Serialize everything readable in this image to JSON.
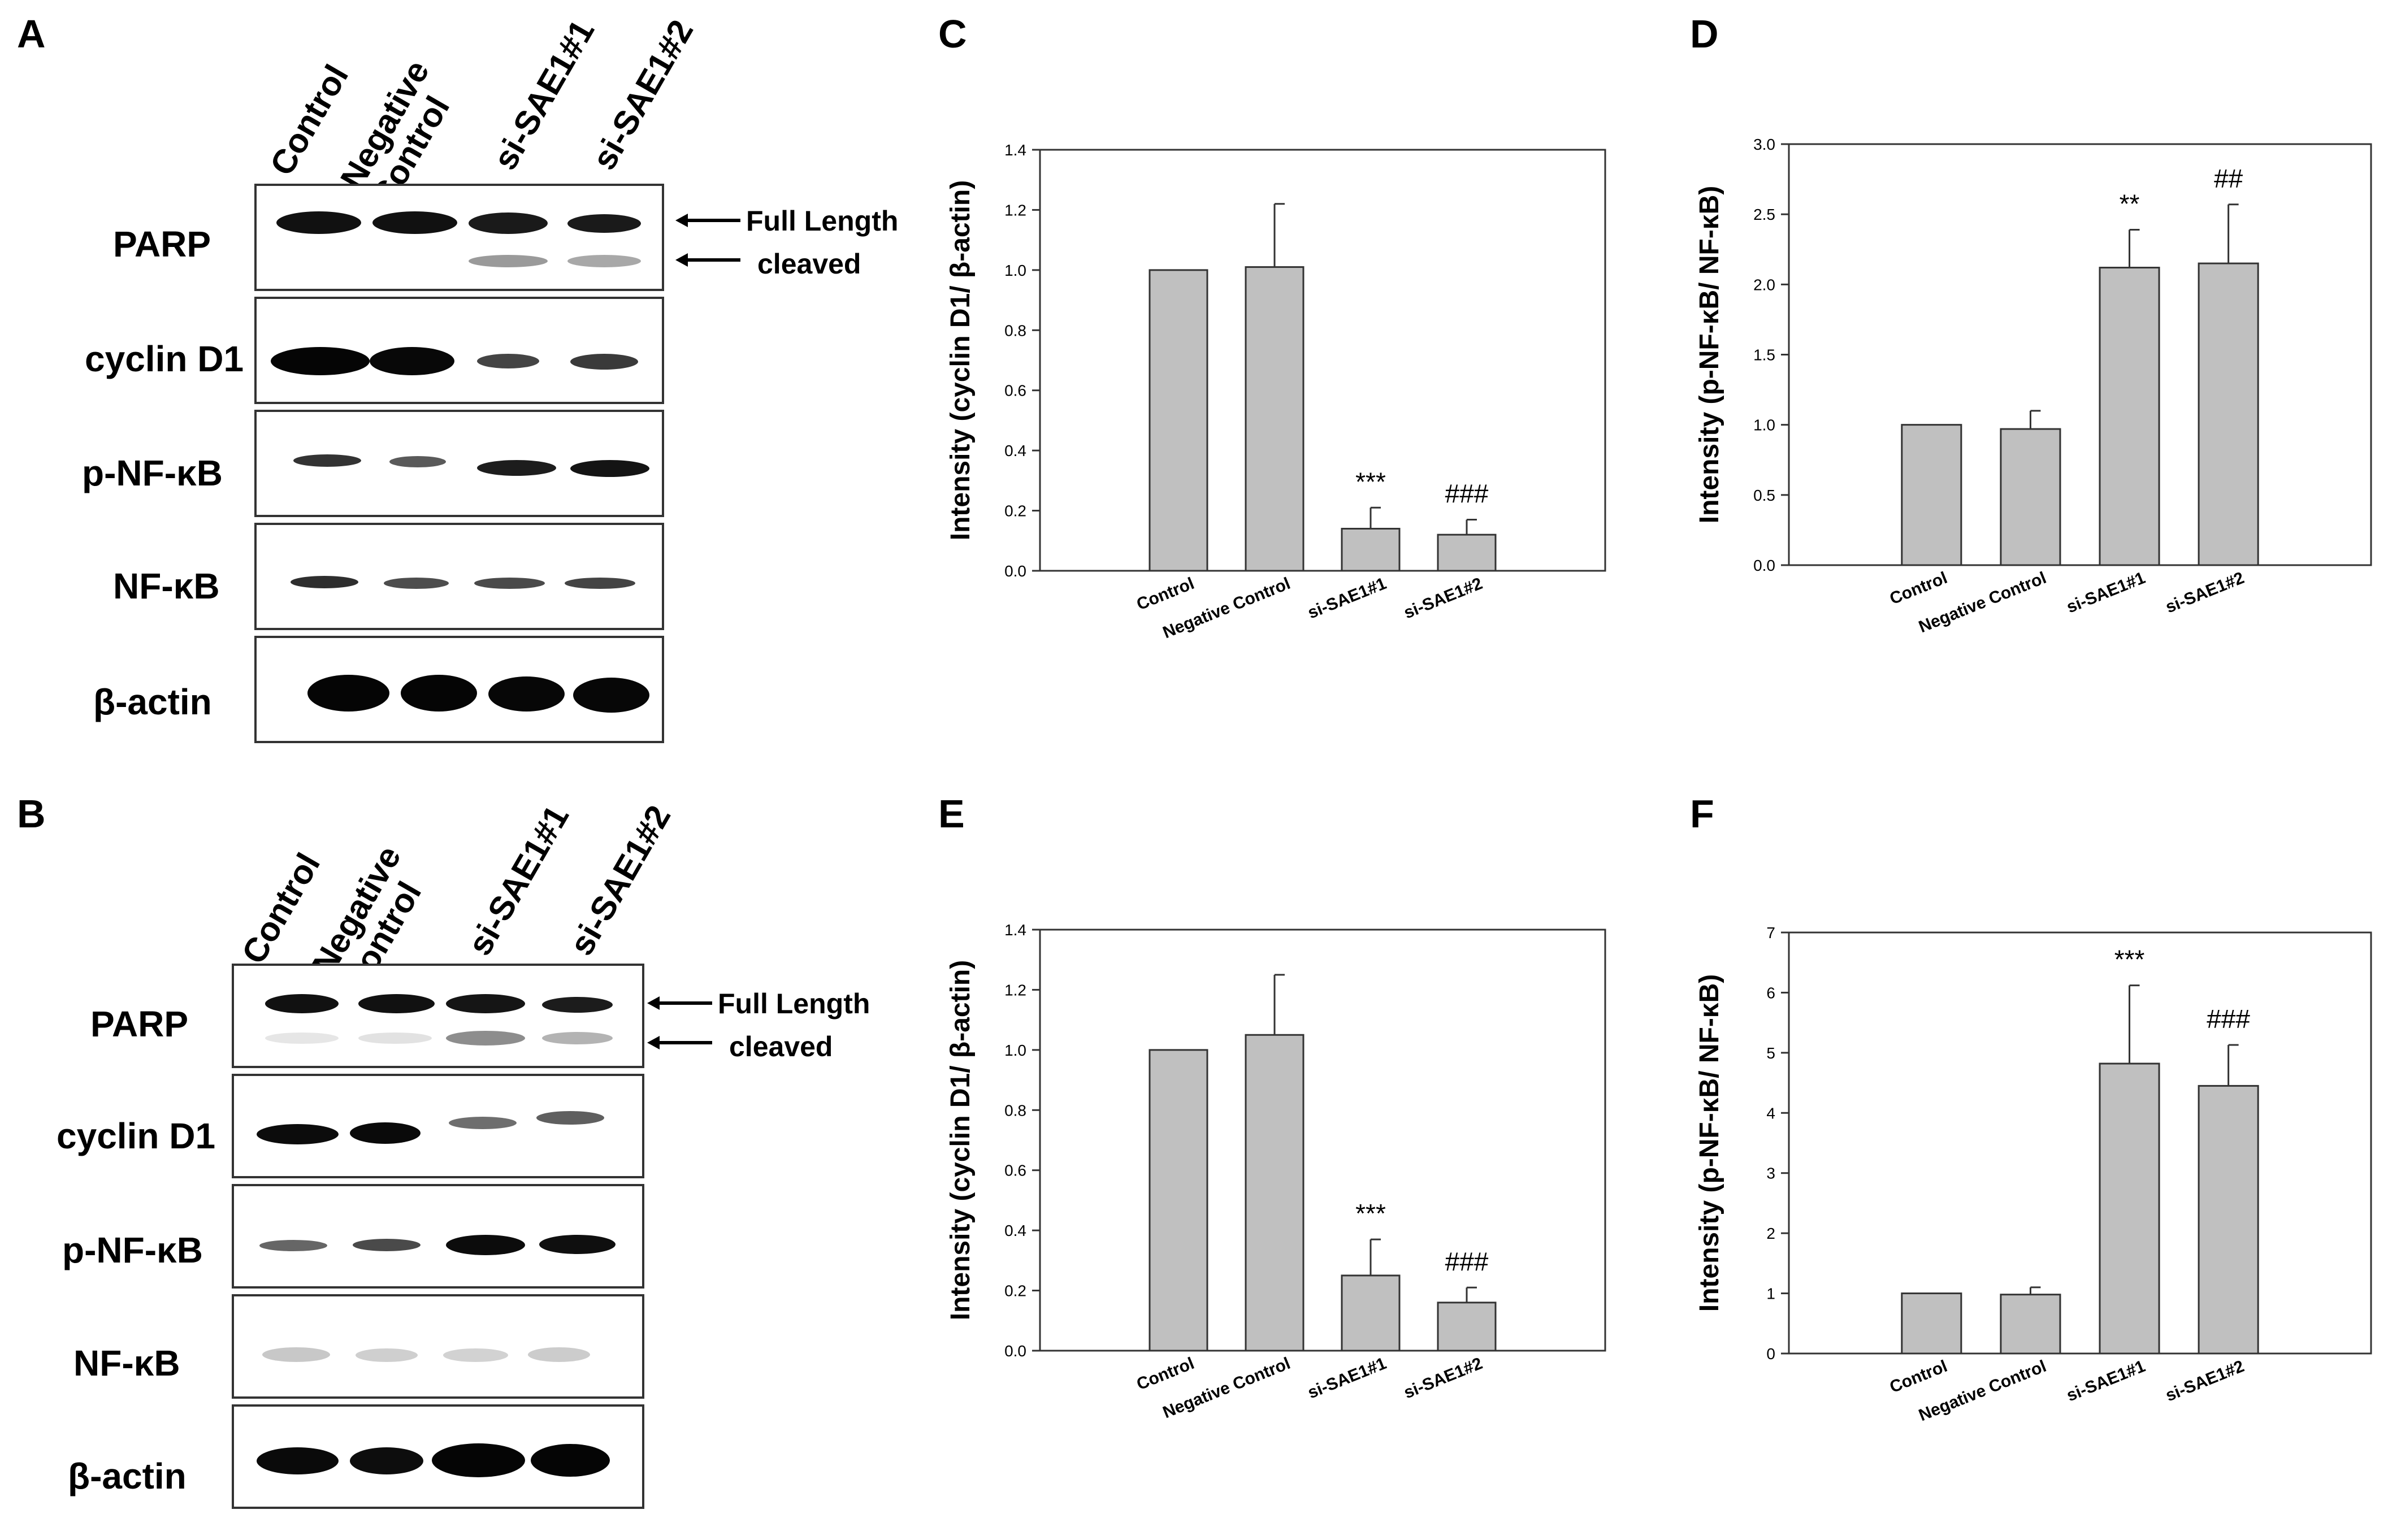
{
  "panels": {
    "A": "A",
    "B": "B",
    "C": "C",
    "D": "D",
    "E": "E",
    "F": "F"
  },
  "blots": [
    {
      "id": "A",
      "lanes": [
        "Control",
        "Negative Control",
        "si-SAE1#1",
        "si-SAE1#2"
      ],
      "rows": [
        {
          "label": "PARP"
        },
        {
          "label": "cyclin D1"
        },
        {
          "label": "p-NF-κB"
        },
        {
          "label": "NF-κB"
        },
        {
          "label": "β-actin"
        }
      ],
      "arrows": {
        "full": "Full Length",
        "cleaved": "cleaved"
      }
    },
    {
      "id": "B",
      "lanes": [
        "Control",
        "Negative Control",
        "si-SAE1#1",
        "si-SAE1#2"
      ],
      "rows": [
        {
          "label": "PARP"
        },
        {
          "label": "cyclin D1"
        },
        {
          "label": "p-NF-κB"
        },
        {
          "label": "NF-κB"
        },
        {
          "label": "β-actin"
        }
      ],
      "arrows": {
        "full": "Full Length",
        "cleaved": "cleaved"
      }
    }
  ],
  "chart_data": [
    {
      "panel": "C",
      "type": "bar",
      "categories": [
        "Control",
        "Negative Control",
        "si-SAE1#1",
        "si-SAE1#2"
      ],
      "values": [
        1.0,
        1.01,
        0.14,
        0.12
      ],
      "errors": [
        0.0,
        0.21,
        0.07,
        0.05
      ],
      "annotations": [
        "",
        "",
        "***",
        "###"
      ],
      "ylabel": "Intensity (cyclin D1/ β-actin)",
      "ylim": [
        0,
        1.4
      ],
      "yticks": [
        0.0,
        0.2,
        0.4,
        0.6,
        0.8,
        1.0,
        1.2,
        1.4
      ],
      "decimals": 1
    },
    {
      "panel": "D",
      "type": "bar",
      "categories": [
        "Control",
        "Negative Control",
        "si-SAE1#1",
        "si-SAE1#2"
      ],
      "values": [
        1.0,
        0.97,
        2.12,
        2.15
      ],
      "errors": [
        0.0,
        0.13,
        0.27,
        0.42
      ],
      "annotations": [
        "",
        "",
        "**",
        "##"
      ],
      "ylabel": "Intensity (p-NF-κB/ NF-κB)",
      "ylim": [
        0,
        3.0
      ],
      "yticks": [
        0.0,
        0.5,
        1.0,
        1.5,
        2.0,
        2.5,
        3.0
      ],
      "decimals": 1
    },
    {
      "panel": "E",
      "type": "bar",
      "categories": [
        "Control",
        "Negative Control",
        "si-SAE1#1",
        "si-SAE1#2"
      ],
      "values": [
        1.0,
        1.05,
        0.25,
        0.16
      ],
      "errors": [
        0.0,
        0.2,
        0.12,
        0.05
      ],
      "annotations": [
        "",
        "",
        "***",
        "###"
      ],
      "ylabel": "Intensity (cyclin D1/ β-actin)",
      "ylim": [
        0,
        1.4
      ],
      "yticks": [
        0.0,
        0.2,
        0.4,
        0.6,
        0.8,
        1.0,
        1.2,
        1.4
      ],
      "decimals": 1
    },
    {
      "panel": "F",
      "type": "bar",
      "categories": [
        "Control",
        "Negative Control",
        "si-SAE1#1",
        "si-SAE1#2"
      ],
      "values": [
        1.0,
        0.98,
        4.82,
        4.45
      ],
      "errors": [
        0.0,
        0.12,
        1.3,
        0.68
      ],
      "annotations": [
        "",
        "",
        "***",
        "###"
      ],
      "ylabel": "Intensity (p-NF-κB/ NF-κB)",
      "ylim": [
        0,
        7
      ],
      "yticks": [
        0,
        1,
        2,
        3,
        4,
        5,
        6,
        7
      ],
      "decimals": 0
    }
  ],
  "colors": {
    "bar_fill": "#c0c0c0",
    "bar_stroke": "#333333",
    "band": "#111111"
  }
}
